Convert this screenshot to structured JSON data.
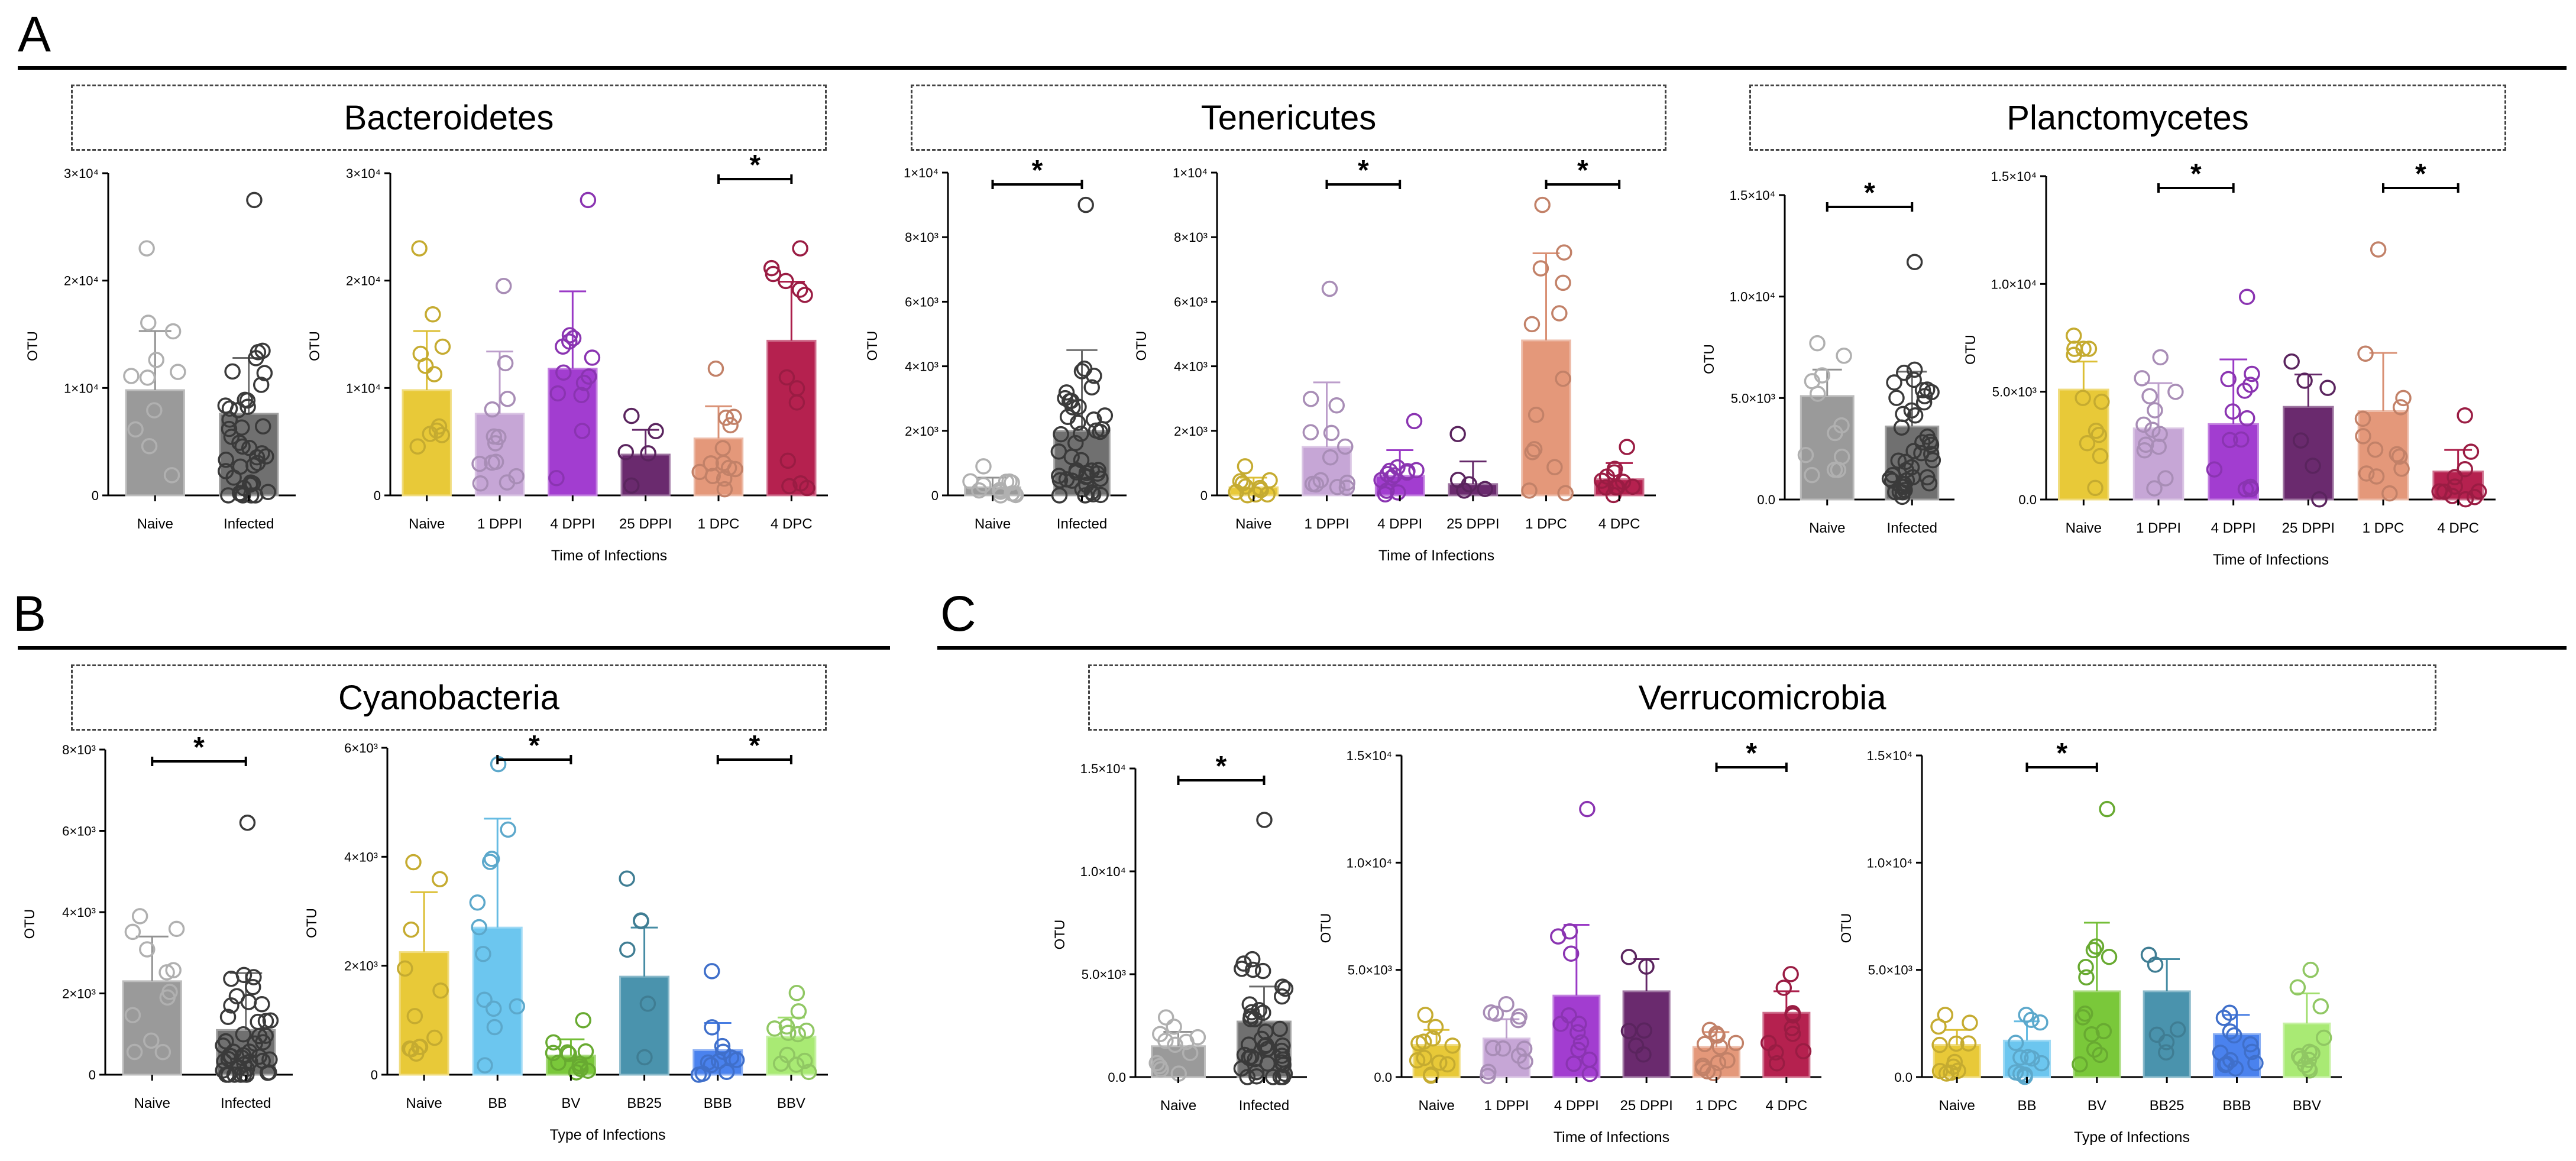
{
  "panels": [
    {
      "letter": "A",
      "titles": [
        "Bacteroidetes",
        "Tenericutes",
        "Planctomycetes"
      ]
    },
    {
      "letter": "B",
      "titles": [
        "Cyanobacteria"
      ]
    },
    {
      "letter": "C",
      "titles": [
        "Verrucomicrobia"
      ]
    }
  ],
  "colors": {
    "naive_grey": "#9a9a9a",
    "infected_grey": "#707070",
    "naive": "#e8c938",
    "dppi1": "#c6a6d6",
    "dppi4": "#a23dd0",
    "dppi25": "#6a2a6e",
    "dpc1": "#e4987a",
    "dpc4": "#b5214f",
    "bb": "#6cc6ef",
    "bv": "#7ac83a",
    "bb25": "#4a93ad",
    "bbb": "#4a82ee",
    "bbv": "#a9ea74"
  },
  "chart_data": [
    {
      "id": "bact_ni",
      "type": "bar",
      "title": "Bacteroidetes",
      "ylabel": "OTU",
      "xlabel": "",
      "ylim": [
        0,
        30000
      ],
      "yticks": [
        {
          "v": 0,
          "label": "0"
        },
        {
          "v": 10000,
          "label": "1×10⁴"
        },
        {
          "v": 20000,
          "label": "2×10⁴"
        },
        {
          "v": 30000,
          "label": "3×10⁴"
        }
      ],
      "categories": [
        "Naive",
        "Infected"
      ],
      "values": [
        9800,
        7600
      ],
      "errors": [
        5500,
        5200
      ],
      "colors": [
        "#9a9a9a",
        "#707070"
      ],
      "npoints": [
        11,
        42
      ],
      "maxpoints": [
        23000,
        27500
      ],
      "sig": []
    },
    {
      "id": "bact_t",
      "type": "bar",
      "title": "Bacteroidetes",
      "ylabel": "OTU",
      "xlabel": "Time of Infections",
      "ylim": [
        0,
        30000
      ],
      "yticks": [
        {
          "v": 0,
          "label": "0"
        },
        {
          "v": 10000,
          "label": "1×10⁴"
        },
        {
          "v": 20000,
          "label": "2×10⁴"
        },
        {
          "v": 30000,
          "label": "3×10⁴"
        }
      ],
      "categories": [
        "Naive",
        "1 DPPI",
        "4 DPPI",
        "25 DPPI",
        "1 DPC",
        "4 DPC"
      ],
      "values": [
        9800,
        7600,
        11800,
        3800,
        5300,
        14400
      ],
      "errors": [
        5500,
        5800,
        7200,
        2300,
        3000,
        5500
      ],
      "colors": [
        "#e8c938",
        "#c6a6d6",
        "#a23dd0",
        "#6a2a6e",
        "#e4987a",
        "#b5214f"
      ],
      "npoints": [
        11,
        13,
        13,
        5,
        13,
        13
      ],
      "maxpoints": [
        23000,
        19500,
        27500,
        7400,
        11800,
        23000
      ],
      "sig": [
        {
          "from": 4,
          "to": 5,
          "label": "*"
        }
      ]
    },
    {
      "id": "ten_ni",
      "type": "bar",
      "title": "Tenericutes",
      "ylabel": "OTU",
      "xlabel": "",
      "ylim": [
        0,
        10000
      ],
      "yticks": [
        {
          "v": 0,
          "label": "0"
        },
        {
          "v": 2000,
          "label": "2×10³"
        },
        {
          "v": 4000,
          "label": "4×10³"
        },
        {
          "v": 6000,
          "label": "6×10³"
        },
        {
          "v": 8000,
          "label": "8×10³"
        },
        {
          "v": 10000,
          "label": "1×10⁴"
        }
      ],
      "categories": [
        "Naive",
        "Infected"
      ],
      "values": [
        250,
        2000
      ],
      "errors": [
        300,
        2500
      ],
      "colors": [
        "#9a9a9a",
        "#707070"
      ],
      "npoints": [
        13,
        44
      ],
      "maxpoints": [
        900,
        9000
      ],
      "sig": [
        {
          "from": 0,
          "to": 1,
          "label": "*"
        }
      ]
    },
    {
      "id": "ten_t",
      "type": "bar",
      "title": "Tenericutes",
      "ylabel": "OTU",
      "xlabel": "Time of Infections",
      "ylim": [
        0,
        10000
      ],
      "yticks": [
        {
          "v": 0,
          "label": "0"
        },
        {
          "v": 2000,
          "label": "2×10³"
        },
        {
          "v": 4000,
          "label": "4×10³"
        },
        {
          "v": 6000,
          "label": "6×10³"
        },
        {
          "v": 8000,
          "label": "8×10³"
        },
        {
          "v": 10000,
          "label": "1×10⁴"
        }
      ],
      "categories": [
        "Naive",
        "1 DPPI",
        "4 DPPI",
        "25 DPPI",
        "1 DPC",
        "4 DPC"
      ],
      "values": [
        250,
        1500,
        600,
        350,
        4800,
        500
      ],
      "errors": [
        300,
        2000,
        800,
        700,
        2700,
        500
      ],
      "colors": [
        "#e8c938",
        "#c6a6d6",
        "#a23dd0",
        "#6a2a6e",
        "#e4987a",
        "#b5214f"
      ],
      "npoints": [
        11,
        13,
        13,
        5,
        13,
        11
      ],
      "maxpoints": [
        900,
        6400,
        2300,
        1900,
        9000,
        1500
      ],
      "sig": [
        {
          "from": 1,
          "to": 2,
          "label": "*"
        },
        {
          "from": 4,
          "to": 5,
          "label": "*"
        }
      ]
    },
    {
      "id": "plan_ni",
      "type": "bar",
      "title": "Planctomycetes",
      "ylabel": "OTU",
      "xlabel": "",
      "ylim": [
        0,
        15000
      ],
      "yticks": [
        {
          "v": 0,
          "label": "0.0"
        },
        {
          "v": 5000,
          "label": "5.0×10³"
        },
        {
          "v": 10000,
          "label": "1.0×10⁴"
        },
        {
          "v": 15000,
          "label": "1.5×10⁴"
        }
      ],
      "categories": [
        "Naive",
        "Infected"
      ],
      "values": [
        5100,
        3600
      ],
      "errors": [
        1300,
        2700
      ],
      "colors": [
        "#9a9a9a",
        "#707070"
      ],
      "npoints": [
        12,
        42
      ],
      "maxpoints": [
        7700,
        11700
      ],
      "sig": [
        {
          "from": 0,
          "to": 1,
          "label": "*"
        }
      ]
    },
    {
      "id": "plan_t",
      "type": "bar",
      "title": "Planctomycetes",
      "ylabel": "OTU",
      "xlabel": "Time of Infections",
      "ylim": [
        0,
        15000
      ],
      "yticks": [
        {
          "v": 0,
          "label": "0.0"
        },
        {
          "v": 5000,
          "label": "5.0×10³"
        },
        {
          "v": 10000,
          "label": "1.0×10⁴"
        },
        {
          "v": 15000,
          "label": "1.5×10⁴"
        }
      ],
      "categories": [
        "Naive",
        "1 DPPI",
        "4 DPPI",
        "25 DPPI",
        "1 DPC",
        "4 DPC"
      ],
      "values": [
        5100,
        3300,
        3500,
        4300,
        4100,
        1300
      ],
      "errors": [
        1300,
        2100,
        3000,
        1500,
        2700,
        1000
      ],
      "colors": [
        "#e8c938",
        "#c6a6d6",
        "#a23dd0",
        "#6a2a6e",
        "#e4987a",
        "#b5214f"
      ],
      "npoints": [
        12,
        13,
        13,
        6,
        13,
        11
      ],
      "maxpoints": [
        7600,
        6600,
        9400,
        6400,
        11600,
        3900
      ],
      "sig": [
        {
          "from": 1,
          "to": 2,
          "label": "*"
        },
        {
          "from": 4,
          "to": 5,
          "label": "*"
        }
      ]
    },
    {
      "id": "cyan_ni",
      "type": "bar",
      "title": "Cyanobacteria",
      "ylabel": "OTU",
      "xlabel": "",
      "ylim": [
        0,
        8000
      ],
      "yticks": [
        {
          "v": 0,
          "label": "0"
        },
        {
          "v": 2000,
          "label": "2×10³"
        },
        {
          "v": 4000,
          "label": "4×10³"
        },
        {
          "v": 6000,
          "label": "6×10³"
        },
        {
          "v": 8000,
          "label": "8×10³"
        }
      ],
      "categories": [
        "Naive",
        "Infected"
      ],
      "values": [
        2300,
        1100
      ],
      "errors": [
        1100,
        1400
      ],
      "colors": [
        "#9a9a9a",
        "#707070"
      ],
      "npoints": [
        12,
        44
      ],
      "maxpoints": [
        3900,
        6200
      ],
      "sig": [
        {
          "from": 0,
          "to": 1,
          "label": "*"
        }
      ]
    },
    {
      "id": "cyan_t",
      "type": "bar",
      "title": "Cyanobacteria",
      "ylabel": "OTU",
      "xlabel": "Type of Infections",
      "ylim": [
        0,
        6000
      ],
      "yticks": [
        {
          "v": 0,
          "label": "0"
        },
        {
          "v": 2000,
          "label": "2×10³"
        },
        {
          "v": 4000,
          "label": "4×10³"
        },
        {
          "v": 6000,
          "label": "6×10³"
        }
      ],
      "categories": [
        "Naive",
        "BB",
        "BV",
        "BB25",
        "BBB",
        "BBV"
      ],
      "values": [
        2250,
        2700,
        350,
        1800,
        450,
        700
      ],
      "errors": [
        1100,
        2000,
        300,
        900,
        500,
        350
      ],
      "colors": [
        "#e8c938",
        "#6cc6ef",
        "#7ac83a",
        "#4a93ad",
        "#4a82ee",
        "#a9ea74"
      ],
      "npoints": [
        12,
        12,
        12,
        6,
        12,
        12
      ],
      "maxpoints": [
        3900,
        5700,
        1000,
        3600,
        1900,
        1500
      ],
      "sig": [
        {
          "from": 1,
          "to": 2,
          "label": "*"
        },
        {
          "from": 4,
          "to": 5,
          "label": "*"
        }
      ]
    },
    {
      "id": "verr_ni",
      "type": "bar",
      "title": "Verrucomicrobia",
      "ylabel": "OTU",
      "xlabel": "",
      "ylim": [
        0,
        15000
      ],
      "yticks": [
        {
          "v": 0,
          "label": "0.0"
        },
        {
          "v": 5000,
          "label": "5.0×10³"
        },
        {
          "v": 10000,
          "label": "1.0×10⁴"
        },
        {
          "v": 15000,
          "label": "1.5×10⁴"
        }
      ],
      "categories": [
        "Naive",
        "Infected"
      ],
      "values": [
        1500,
        2700
      ],
      "errors": [
        700,
        1700
      ],
      "colors": [
        "#9a9a9a",
        "#707070"
      ],
      "npoints": [
        12,
        44
      ],
      "maxpoints": [
        2900,
        12500
      ],
      "sig": [
        {
          "from": 0,
          "to": 1,
          "label": "*"
        }
      ]
    },
    {
      "id": "verr_t",
      "type": "bar",
      "title": "Verrucomicrobia",
      "ylabel": "OTU",
      "xlabel": "Time of Infections",
      "ylim": [
        0,
        15000
      ],
      "yticks": [
        {
          "v": 0,
          "label": "0.0"
        },
        {
          "v": 5000,
          "label": "5.0×10³"
        },
        {
          "v": 10000,
          "label": "1.0×10⁴"
        },
        {
          "v": 15000,
          "label": "1.5×10⁴"
        }
      ],
      "categories": [
        "Naive",
        "1 DPPI",
        "4 DPPI",
        "25 DPPI",
        "1 DPC",
        "4 DPC"
      ],
      "values": [
        1500,
        1800,
        3800,
        4000,
        1400,
        3000
      ],
      "errors": [
        700,
        900,
        3300,
        1500,
        700,
        1000
      ],
      "colors": [
        "#e8c938",
        "#c6a6d6",
        "#a23dd0",
        "#6a2a6e",
        "#e4987a",
        "#b5214f"
      ],
      "npoints": [
        12,
        12,
        13,
        6,
        12,
        11
      ],
      "maxpoints": [
        2900,
        3400,
        12500,
        5600,
        2200,
        4800
      ],
      "sig": [
        {
          "from": 4,
          "to": 5,
          "label": "*"
        }
      ]
    },
    {
      "id": "verr_type",
      "type": "bar",
      "title": "Verrucomicrobia",
      "ylabel": "OTU",
      "xlabel": "Type of Infections",
      "ylim": [
        0,
        15000
      ],
      "yticks": [
        {
          "v": 0,
          "label": "0.0"
        },
        {
          "v": 5000,
          "label": "5.0×10³"
        },
        {
          "v": 10000,
          "label": "1.0×10⁴"
        },
        {
          "v": 15000,
          "label": "1.5×10⁴"
        }
      ],
      "categories": [
        "Naive",
        "BB",
        "BV",
        "BB25",
        "BBB",
        "BBV"
      ],
      "values": [
        1500,
        1700,
        4000,
        4000,
        2000,
        2500
      ],
      "errors": [
        700,
        900,
        3200,
        1500,
        900,
        1400
      ],
      "colors": [
        "#e8c938",
        "#6cc6ef",
        "#7ac83a",
        "#4a93ad",
        "#4a82ee",
        "#a9ea74"
      ],
      "npoints": [
        12,
        12,
        13,
        6,
        12,
        12
      ],
      "maxpoints": [
        2900,
        2900,
        12500,
        5700,
        3000,
        5000
      ],
      "sig": [
        {
          "from": 1,
          "to": 2,
          "label": "*"
        }
      ]
    }
  ]
}
